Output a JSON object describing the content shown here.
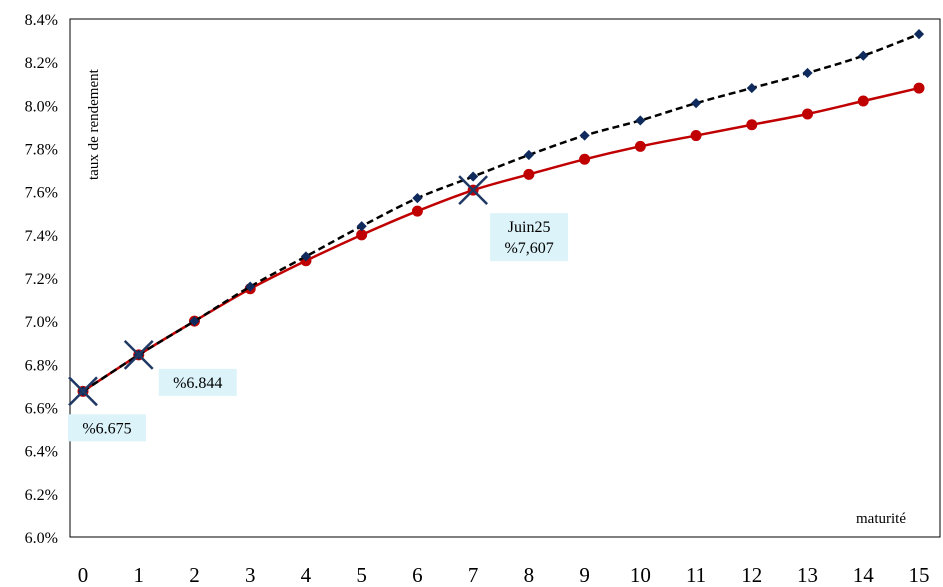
{
  "chart_data": {
    "type": "line",
    "xlabel": "maturité",
    "ylabel": "taux de rendement",
    "xlim": [
      0,
      15
    ],
    "ylim": [
      0.06,
      0.084
    ],
    "x_ticks": [
      "0",
      "1",
      "2",
      "3",
      "4",
      "5",
      "6",
      "7",
      "8",
      "9",
      "10",
      "11",
      "12",
      "13",
      "14",
      "15"
    ],
    "y_ticks": [
      "6.0%",
      "6.2%",
      "6.4%",
      "6.6%",
      "6.8%",
      "7.0%",
      "7.2%",
      "7.4%",
      "7.6%",
      "7.8%",
      "8.0%",
      "8.2%",
      "8.4%"
    ],
    "grid": false,
    "series": [
      {
        "style": "dashed-black-with-diamonds",
        "color": "#000000",
        "marker_color": "#0f2a5c",
        "x": [
          0,
          1,
          2,
          3,
          4,
          5,
          6,
          7,
          8,
          9,
          10,
          11,
          12,
          13,
          14,
          15
        ],
        "values": [
          0.06675,
          0.06844,
          0.07,
          0.0716,
          0.073,
          0.0744,
          0.0757,
          0.0767,
          0.0777,
          0.0786,
          0.0793,
          0.0801,
          0.0808,
          0.0815,
          0.0823,
          0.0833
        ]
      },
      {
        "style": "solid-red-with-circles",
        "color": "#c00000",
        "x": [
          0,
          1,
          2,
          3,
          4,
          5,
          6,
          7,
          8,
          9,
          10,
          11,
          12,
          13,
          14,
          15
        ],
        "values": [
          0.06675,
          0.06844,
          0.07,
          0.0715,
          0.0728,
          0.074,
          0.0751,
          0.07607,
          0.0768,
          0.0775,
          0.0781,
          0.0786,
          0.0791,
          0.0796,
          0.0802,
          0.0808
        ]
      }
    ],
    "cross_markers": [
      {
        "x": 0,
        "y": 0.06675
      },
      {
        "x": 1,
        "y": 0.06844
      },
      {
        "x": 7,
        "y": 0.07607
      }
    ],
    "annotations": [
      {
        "lines": [
          "%6.675"
        ],
        "x": 0,
        "y": 0.06675
      },
      {
        "lines": [
          "%6.844"
        ],
        "x": 1,
        "y": 0.06844
      },
      {
        "lines": [
          "Juin25",
          "%7,607"
        ],
        "x": 7,
        "y": 0.07607
      }
    ],
    "annotation_bg": "#dbf3f9",
    "cross_color": "#1f3864"
  }
}
